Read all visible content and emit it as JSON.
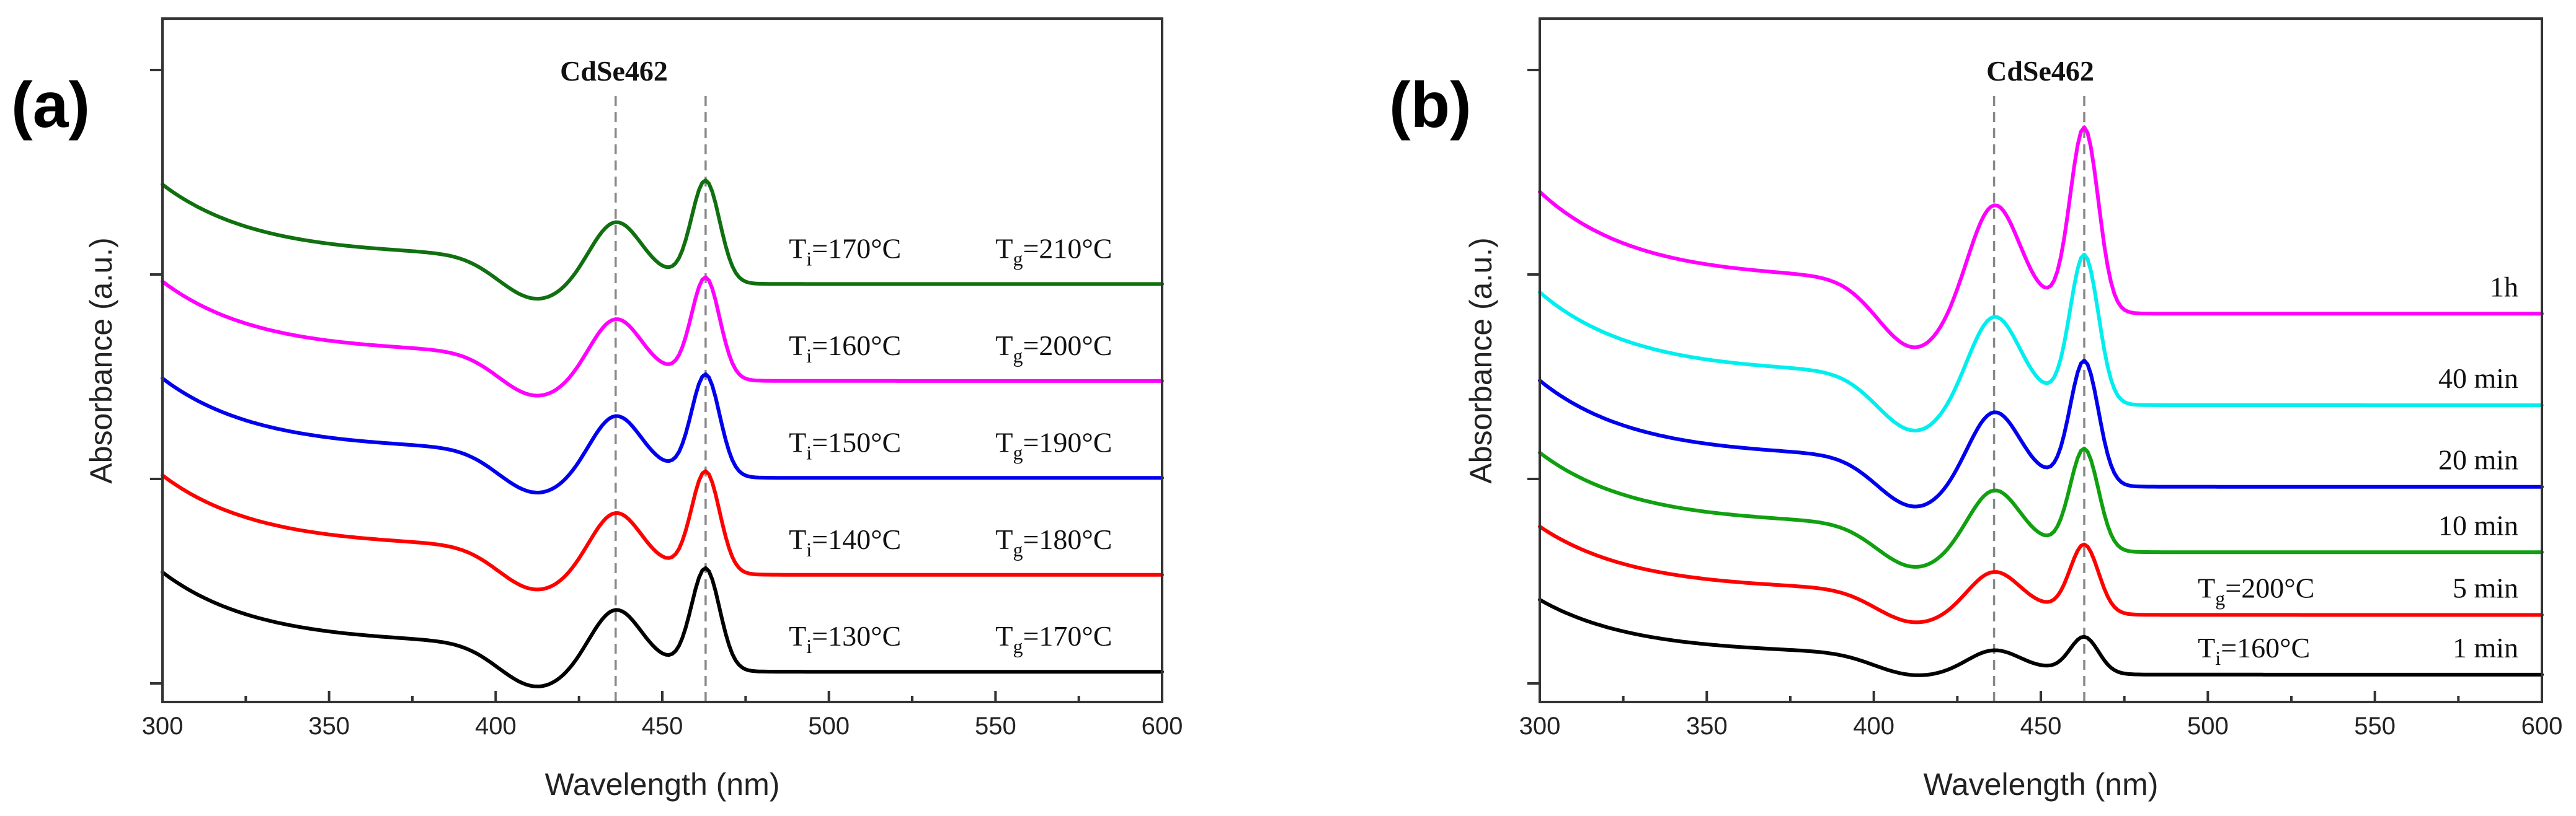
{
  "chart_data": [
    {
      "type": "line",
      "panel_label": "(a)",
      "xlabel": "Wavelength (nm)",
      "ylabel": "Absorbance (a.u.)",
      "xlim": [
        300,
        600
      ],
      "ylim": [
        0,
        100
      ],
      "xticks": [
        300,
        350,
        400,
        450,
        500,
        550,
        600
      ],
      "peak_label": "CdSe462",
      "reference_lines_nm": [
        436,
        463
      ],
      "series": [
        {
          "name": "Ti=130°C Tg=170°C",
          "color": "#000000",
          "offset": 0,
          "tail": 0,
          "feature_strength": 1.0,
          "ti_main": "T",
          "ti_sub": "i",
          "ti_rest": "=130°C",
          "tg_main": "T",
          "tg_sub": "g",
          "tg_rest": "=170°C"
        },
        {
          "name": "Ti=140°C Tg=180°C",
          "color": "#ff0000",
          "offset": 15,
          "tail": 0,
          "feature_strength": 1.0,
          "ti_main": "T",
          "ti_sub": "i",
          "ti_rest": "=140°C",
          "tg_main": "T",
          "tg_sub": "g",
          "tg_rest": "=180°C"
        },
        {
          "name": "Ti=150°C Tg=190°C",
          "color": "#0000ee",
          "offset": 30,
          "tail": 0,
          "feature_strength": 1.0,
          "ti_main": "T",
          "ti_sub": "i",
          "ti_rest": "=150°C",
          "tg_main": "T",
          "tg_sub": "g",
          "tg_rest": "=190°C"
        },
        {
          "name": "Ti=160°C Tg=200°C",
          "color": "#ff00ff",
          "offset": 45,
          "tail": 0,
          "feature_strength": 1.0,
          "ti_main": "T",
          "ti_sub": "i",
          "ti_rest": "=160°C",
          "tg_main": "T",
          "tg_sub": "g",
          "tg_rest": "=200°C"
        },
        {
          "name": "Ti=170°C Tg=210°C",
          "color": "#107010",
          "offset": 60,
          "tail": 0,
          "feature_strength": 1.0,
          "ti_main": "T",
          "ti_sub": "i",
          "ti_rest": "=170°C",
          "tg_main": "T",
          "tg_sub": "g",
          "tg_rest": "=210°C"
        }
      ]
    },
    {
      "type": "line",
      "panel_label": "(b)",
      "xlabel": "Wavelength (nm)",
      "ylabel": "Absorbance (a.u.)",
      "xlim": [
        300,
        600
      ],
      "ylim": [
        0,
        100
      ],
      "xticks": [
        300,
        350,
        400,
        450,
        500,
        550,
        600
      ],
      "peak_label": "CdSe462",
      "reference_lines_nm": [
        436,
        463
      ],
      "condition_ti": {
        "main": "T",
        "sub": "i",
        "rest": "=160°C"
      },
      "condition_tg": {
        "main": "T",
        "sub": "g",
        "rest": "=200°C"
      },
      "series": [
        {
          "name": "1 min",
          "color": "#000000",
          "offset": 0,
          "feature_strength": 0.45
        },
        {
          "name": "5 min",
          "color": "#ff0000",
          "offset": 9,
          "feature_strength": 0.75
        },
        {
          "name": "10 min",
          "color": "#10a010",
          "offset": 18.5,
          "feature_strength": 1.0
        },
        {
          "name": "20 min",
          "color": "#0000ee",
          "offset": 28.5,
          "feature_strength": 1.15
        },
        {
          "name": "40 min",
          "color": "#00eeee",
          "offset": 41,
          "feature_strength": 1.3
        },
        {
          "name": "1h",
          "color": "#ff00ff",
          "offset": 55,
          "feature_strength": 1.5
        }
      ]
    }
  ]
}
